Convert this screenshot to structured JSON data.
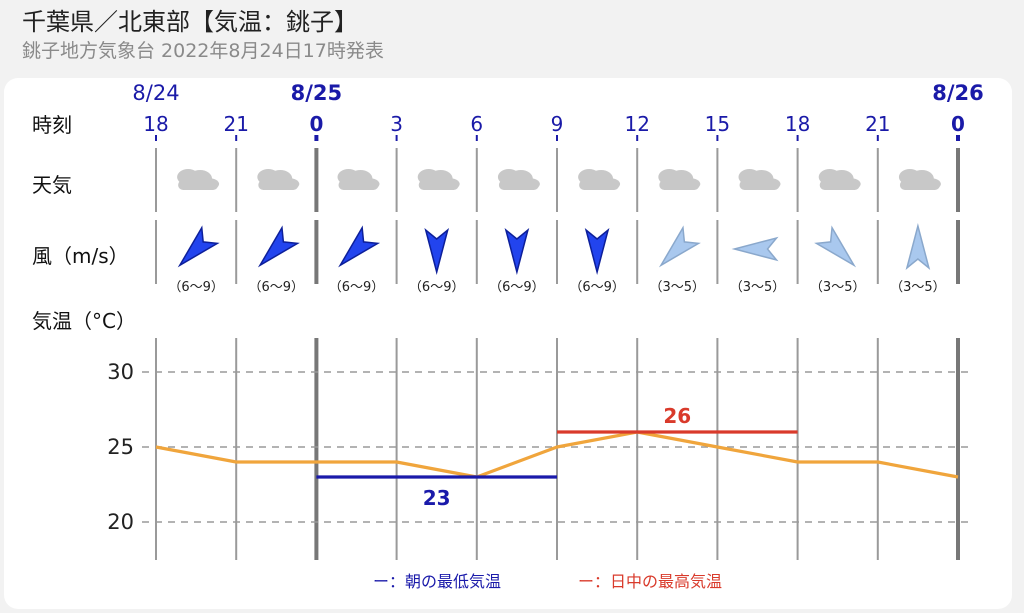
{
  "header": {
    "title": "千葉県／北東部【気温：銚子】",
    "subtitle": "銚子地方気象台 2022年8月24日17時発表"
  },
  "row_labels": {
    "hour": "時刻",
    "weather": "天気",
    "wind": "風（m/s）",
    "temp": "気温（°C）"
  },
  "colors": {
    "date_blue": "#1a1aa8",
    "wind_strong": "#2244ee",
    "wind_weak": "#a9c8ee",
    "temp_line": "#f0a53c",
    "min_line": "#1a1aaa",
    "max_line": "#d93a2b",
    "cloud": "#c8c8c8"
  },
  "columns": [
    {
      "date": "8/24",
      "hour": "18",
      "weather_icon": "cloud-icon",
      "wind_dir_deg": 225,
      "wind_range": "（6～9）",
      "wind_strength": "strong",
      "temp": 25
    },
    {
      "date": "",
      "hour": "21",
      "weather_icon": "cloud-icon",
      "wind_dir_deg": 225,
      "wind_range": "（6～9）",
      "wind_strength": "strong",
      "temp": 24
    },
    {
      "date": "8/25",
      "hour": "0",
      "weather_icon": "cloud-icon",
      "wind_dir_deg": 225,
      "wind_range": "（6～9）",
      "wind_strength": "strong",
      "temp": 24
    },
    {
      "date": "",
      "hour": "3",
      "weather_icon": "cloud-icon",
      "wind_dir_deg": 180,
      "wind_range": "（6～9）",
      "wind_strength": "strong",
      "temp": 24
    },
    {
      "date": "",
      "hour": "6",
      "weather_icon": "cloud-icon",
      "wind_dir_deg": 180,
      "wind_range": "（6～9）",
      "wind_strength": "strong",
      "temp": 23
    },
    {
      "date": "",
      "hour": "9",
      "weather_icon": "cloud-icon",
      "wind_dir_deg": 180,
      "wind_range": "（6～9）",
      "wind_strength": "strong",
      "temp": 25
    },
    {
      "date": "",
      "hour": "12",
      "weather_icon": "cloud-icon",
      "wind_dir_deg": 225,
      "wind_range": "（3～5）",
      "wind_strength": "weak",
      "temp": 26
    },
    {
      "date": "",
      "hour": "15",
      "weather_icon": "cloud-icon",
      "wind_dir_deg": 270,
      "wind_range": "（3～5）",
      "wind_strength": "weak",
      "temp": 25
    },
    {
      "date": "",
      "hour": "18",
      "weather_icon": "cloud-icon",
      "wind_dir_deg": 135,
      "wind_range": "（3～5）",
      "wind_strength": "weak",
      "temp": 24
    },
    {
      "date": "",
      "hour": "21",
      "weather_icon": "cloud-icon",
      "wind_dir_deg": 0,
      "wind_range": "（3～5）",
      "wind_strength": "weak",
      "temp": 24
    },
    {
      "date": "8/26",
      "hour": "0",
      "weather_icon": "cloud-icon",
      "wind_dir_deg": null,
      "wind_range": "",
      "wind_strength": "",
      "temp": 23
    }
  ],
  "chart_data": {
    "type": "line",
    "title": "",
    "xlabel": "時刻",
    "ylabel": "気温（°C）",
    "categories": [
      "18",
      "21",
      "0",
      "3",
      "6",
      "9",
      "12",
      "15",
      "18",
      "21",
      "0"
    ],
    "series": [
      {
        "values": [
          25,
          24,
          24,
          24,
          23,
          25,
          26,
          25,
          24,
          24,
          23
        ]
      }
    ],
    "yticks": [
      20,
      25,
      30
    ],
    "ylim": [
      18.5,
      31.5
    ],
    "grid": true,
    "min_temp": {
      "value": 23,
      "label": "23",
      "from_index": 2,
      "to_index": 5
    },
    "max_temp": {
      "value": 26,
      "label": "26",
      "from_index": 5,
      "to_index": 8
    },
    "legend": [
      {
        "label": "ー：朝の最低気温",
        "color": "#1a1aaa"
      },
      {
        "label": "ー：日中の最高気温",
        "color": "#d93a2b"
      }
    ],
    "legend_position": "bottom-center"
  }
}
